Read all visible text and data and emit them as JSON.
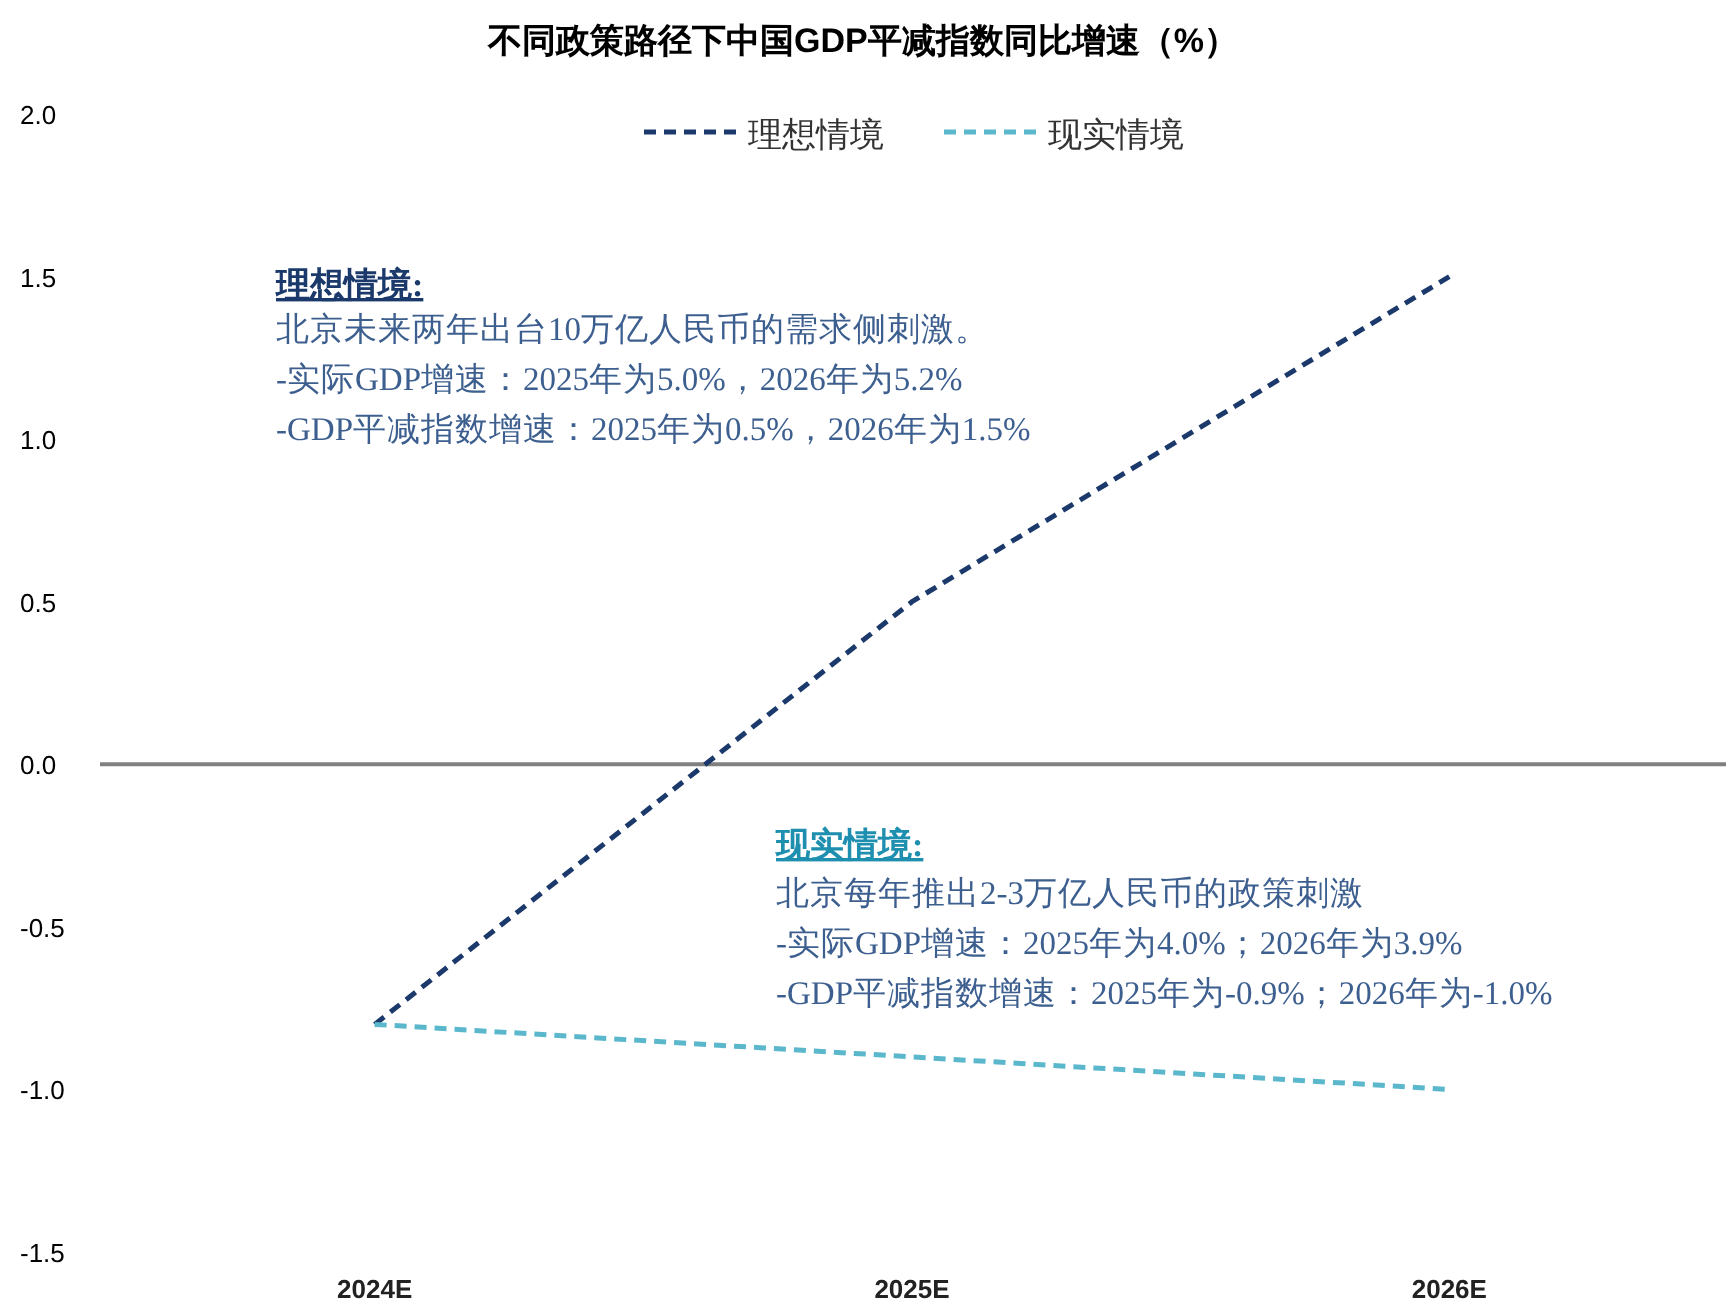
{
  "chart_data": {
    "type": "line",
    "title": "不同政策路径下中国GDP平减指数同比增速（%）",
    "categories": [
      "2024E",
      "2025E",
      "2026E"
    ],
    "series": [
      {
        "name": "理想情境",
        "color": "#1b3a6b",
        "values": [
          -0.8,
          0.5,
          1.5
        ]
      },
      {
        "name": "现实情境",
        "color": "#5bb8cc",
        "values": [
          -0.8,
          -0.9,
          -1.0
        ]
      }
    ],
    "line_style": "dashed",
    "marker": "none",
    "legend": "top",
    "grid": false,
    "ylim": [
      -1.5,
      2.0
    ],
    "yticks": [
      {
        "value": -1.5,
        "label": "-1.5"
      },
      {
        "value": -1.0,
        "label": "-1.0"
      },
      {
        "value": -0.5,
        "label": "-0.5"
      },
      {
        "value": 0,
        "label": "0.0"
      },
      {
        "value": 0.5,
        "label": "0.5"
      },
      {
        "value": 1.0,
        "label": "1.0"
      },
      {
        "value": 1.5,
        "label": "1.5"
      },
      {
        "value": 2.0,
        "label": "2.0"
      }
    ],
    "ref_lines": [
      {
        "axis": "y",
        "value": 0,
        "color": "#808080"
      }
    ],
    "annotations": [
      "理想情境:",
      "北京未来两年出台10万亿人民币的需求侧刺激。\n-实际GDP增速：2025年为5.0%，2026年为5.2%\n-GDP平减指数增速：2025年为0.5%，2026年为1.5%",
      "现实情境:",
      "北京每年推出2-3万亿人民币的政策刺激\n-实际GDP增速：2025年为4.0%；2026年为3.9%\n-GDP平减指数增速：2025年为-0.9%；2026年为-1.0%"
    ]
  }
}
